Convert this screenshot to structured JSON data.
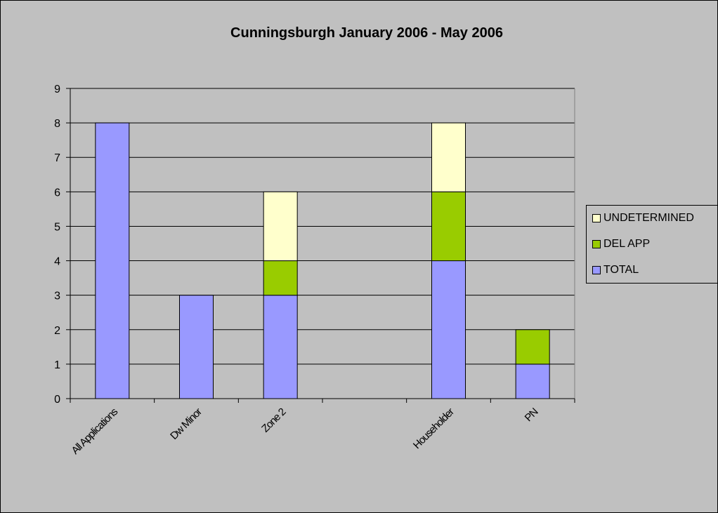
{
  "chart_data": {
    "type": "bar",
    "stacked": true,
    "title": "Cunningsburgh January 2006 - May 2006",
    "xlabel": "",
    "ylabel": "",
    "ylim": [
      0,
      9
    ],
    "yticks": [
      "0",
      "1",
      "2",
      "3",
      "4",
      "5",
      "6",
      "7",
      "8",
      "9"
    ],
    "grid": true,
    "legend_position": "right",
    "categories": [
      "All Applications",
      "Dw Minor",
      "Zone 2",
      "",
      "Householder",
      "PN"
    ],
    "series": [
      {
        "name": "TOTAL",
        "color": "#9999ff",
        "values": [
          8,
          3,
          3,
          0,
          4,
          1
        ]
      },
      {
        "name": "DEL APP",
        "color": "#99cc00",
        "values": [
          0,
          0,
          1,
          0,
          2,
          1
        ]
      },
      {
        "name": "UNDETERMINED",
        "color": "#ffffcc",
        "values": [
          0,
          0,
          2,
          0,
          2,
          0
        ]
      }
    ]
  }
}
